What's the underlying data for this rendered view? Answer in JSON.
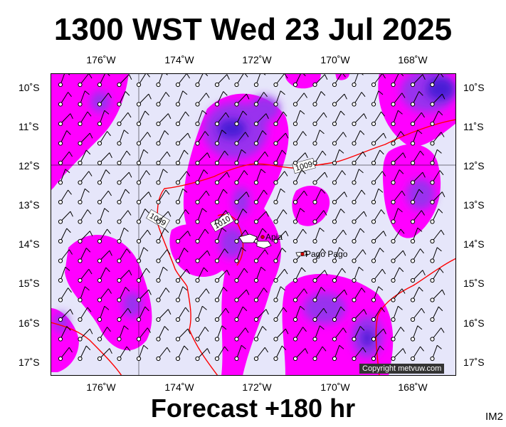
{
  "title": "1300 WST Wed 23 Jul 2025",
  "footer": "Forecast +180 hr",
  "product_code": "IM2",
  "copyright": "Copyright metvuw.com",
  "lon_labels": [
    "176˚W",
    "174˚W",
    "172˚W",
    "170˚W",
    "168˚W"
  ],
  "lat_labels": [
    "10˚S",
    "11˚S",
    "12˚S",
    "13˚S",
    "14˚S",
    "15˚S",
    "16˚S",
    "17˚S"
  ],
  "places": [
    {
      "name": "Apia",
      "lon": -171.77,
      "lat": -13.83
    },
    {
      "name": "Pago Pago",
      "lon": -170.7,
      "lat": -14.27
    }
  ],
  "isobar_labels": [
    "1009",
    "1010",
    "1009"
  ],
  "colors": {
    "ocean": "#e6e6fa",
    "precip_light": "#ff00ff",
    "precip_mid": "#9933ee",
    "precip_heavy": "#4a1ad6",
    "isobar": "#ff0000"
  }
}
